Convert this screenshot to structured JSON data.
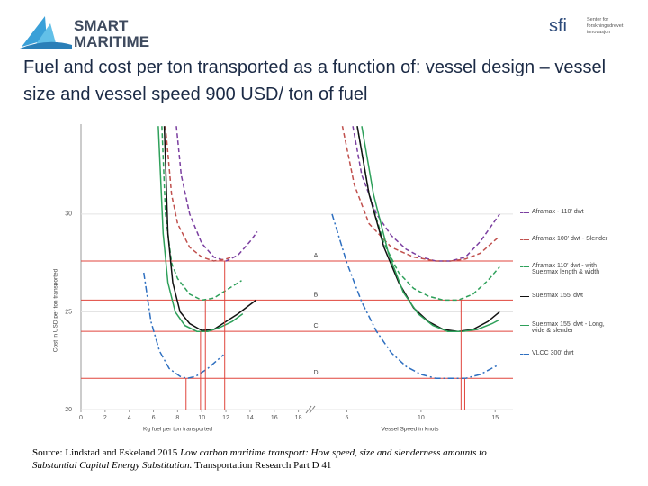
{
  "header": {
    "logo": [
      "SMART",
      "MARITIME"
    ],
    "sfi": "sfi",
    "sfi_text": "Senter for forskningsdrevet innovasjon"
  },
  "title": "Fuel and cost per ton transported as a function of:   vessel design – vessel size and vessel speed  900 USD/ ton of fuel",
  "chart_data": [
    {
      "type": "line",
      "x_label": "Kg fuel per ton transported",
      "y_label": "Cost in USD per ton transported",
      "xlim": [
        0,
        19
      ],
      "xticks": [
        0,
        2,
        4,
        6,
        8,
        10,
        12,
        14,
        16,
        18
      ],
      "ylim": [
        20,
        34.6
      ],
      "yticks": [
        20,
        25,
        30
      ],
      "grid": true,
      "hlines": [
        {
          "label": "A",
          "value": 27.6
        },
        {
          "label": "B",
          "value": 25.6
        },
        {
          "label": "C",
          "value": 24.0
        },
        {
          "label": "D",
          "value": 21.6
        }
      ],
      "vlines": [
        {
          "x": 8.7,
          "y": 21.6
        },
        {
          "x": 9.9,
          "y": 24.0
        },
        {
          "x": 10.3,
          "y": 25.6
        },
        {
          "x": 11.9,
          "y": 27.6
        }
      ],
      "series": [
        {
          "color": "#7b3fa0",
          "dash": "dashed",
          "x": [
            7.9,
            8.3,
            9,
            10,
            11,
            12,
            13,
            14,
            14.6
          ],
          "values": [
            34.5,
            32,
            30,
            28.5,
            27.8,
            27.6,
            27.9,
            28.6,
            29.1
          ]
        },
        {
          "color": "#c0504d",
          "dash": "dashed",
          "x": [
            7,
            7.5,
            8,
            9,
            10,
            11,
            12,
            12.5
          ],
          "values": [
            34.5,
            31,
            29.5,
            28.3,
            27.8,
            27.6,
            27.7,
            27.8
          ]
        },
        {
          "color": "#2ea05a",
          "dash": "dashed",
          "x": [
            6.7,
            7,
            7.5,
            8,
            9,
            10,
            11,
            12,
            13.3
          ],
          "values": [
            34.5,
            30,
            27.5,
            26.7,
            25.9,
            25.6,
            25.7,
            26.1,
            26.6
          ]
        },
        {
          "color": "#111111",
          "dash": "solid",
          "x": [
            6.9,
            7.2,
            7.6,
            8.2,
            9,
            10,
            11,
            12,
            13,
            14.5
          ],
          "values": [
            34.5,
            29,
            26.5,
            25,
            24.4,
            24.05,
            24.1,
            24.5,
            24.9,
            25.6
          ]
        },
        {
          "color": "#2ea05a",
          "dash": "solid",
          "x": [
            6.4,
            6.8,
            7.2,
            7.8,
            8.6,
            9.6,
            10.5,
            11.5,
            12.5,
            13.4
          ],
          "values": [
            34.5,
            29,
            26.5,
            25,
            24.3,
            24.0,
            24.0,
            24.2,
            24.5,
            24.9
          ]
        },
        {
          "color": "#2e6fc0",
          "dash": "dashdot",
          "x": [
            5.2,
            5.8,
            6.5,
            7.3,
            8.2,
            8.8,
            9.5,
            10.5,
            11.8
          ],
          "values": [
            27,
            24.5,
            23,
            22.1,
            21.7,
            21.6,
            21.7,
            22.1,
            22.8
          ]
        }
      ]
    },
    {
      "type": "line",
      "x_label": "Vessel Speed in knots",
      "xlim": [
        2.3,
        16.2
      ],
      "xticks": [
        5,
        10,
        15
      ],
      "ylim": [
        20,
        34.6
      ],
      "vlines": [
        {
          "x": 12.7,
          "y": 25.6
        },
        {
          "x": 12.95,
          "y": 21.6
        }
      ],
      "series": [
        {
          "name": "Aframax - 110' dwt",
          "color": "#7b3fa0",
          "dash": "dashed",
          "x": [
            5.4,
            6,
            7,
            8,
            9,
            10,
            11,
            12,
            13,
            14,
            15.3
          ],
          "values": [
            34.5,
            32,
            30,
            28.9,
            28.2,
            27.8,
            27.6,
            27.6,
            27.8,
            28.6,
            30
          ]
        },
        {
          "name": "Aframax 100' dwt - Slender",
          "color": "#c0504d",
          "dash": "dashed",
          "x": [
            4.7,
            5.5,
            6.5,
            8,
            9.5,
            11,
            12,
            13,
            14,
            15.2
          ],
          "values": [
            34.5,
            31.5,
            29.5,
            28.3,
            27.8,
            27.6,
            27.6,
            27.7,
            28,
            28.8
          ]
        },
        {
          "name": "Aframax 110' dwt - with Suezmax length & width",
          "color": "#2ea05a",
          "dash": "dashed",
          "x": [
            5.7,
            6.5,
            7.5,
            8.5,
            9.5,
            10.5,
            11.5,
            12.5,
            13.5,
            14.5,
            15.3
          ],
          "values": [
            34.5,
            31,
            28.5,
            27,
            26.2,
            25.8,
            25.6,
            25.6,
            25.9,
            26.6,
            27.3
          ]
        },
        {
          "name": "Suezmax 155' dwt",
          "color": "#111111",
          "dash": "solid",
          "x": [
            5.7,
            6.5,
            7.5,
            8.5,
            9.5,
            10.5,
            11.5,
            12.5,
            13.5,
            14.5,
            15.3
          ],
          "values": [
            34.5,
            31,
            28.3,
            26.5,
            25.2,
            24.5,
            24.1,
            24.0,
            24.1,
            24.5,
            25
          ]
        },
        {
          "name": "Suezmax 155' dwt - Long, wide & slender",
          "color": "#2ea05a",
          "dash": "solid",
          "x": [
            6.0,
            6.8,
            7.8,
            8.8,
            9.8,
            10.8,
            11.8,
            12.8,
            13.8,
            14.8,
            15.3
          ],
          "values": [
            34.5,
            31,
            28,
            26,
            24.9,
            24.3,
            24.0,
            24.0,
            24.1,
            24.4,
            24.6
          ]
        },
        {
          "name": "VLCC 300' dwt",
          "color": "#2e6fc0",
          "dash": "dashdot",
          "x": [
            4,
            5,
            6,
            7,
            8,
            9,
            10,
            11,
            12,
            13,
            14,
            15,
            15.3
          ],
          "values": [
            30,
            27.5,
            25.5,
            24,
            22.9,
            22.2,
            21.8,
            21.6,
            21.6,
            21.6,
            21.8,
            22.2,
            22.3
          ]
        }
      ]
    }
  ],
  "source": [
    "Source: Lindstad and Eskeland 2015 ",
    "Low carbon maritime transport: How speed, size and slenderness amounts to Substantial Capital Energy Substitution.",
    " Transportation Research Part D 41"
  ]
}
